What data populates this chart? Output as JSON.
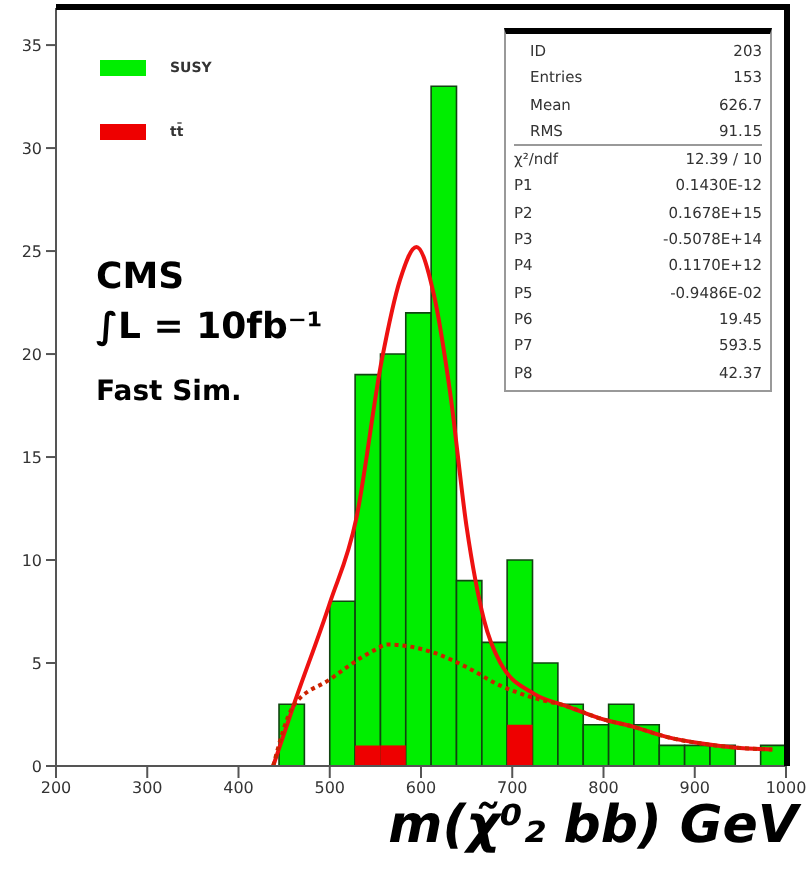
{
  "chart_data": {
    "type": "histogram",
    "xlabel": "m(χ̃⁰₂ bb) GeV",
    "bins": [
      444.4,
      472.2,
      500,
      527.8,
      555.6,
      583.3,
      611.1,
      638.9,
      666.7,
      694.4,
      722.2,
      750,
      777.8,
      805.6,
      833.3,
      861.1,
      888.9,
      916.7,
      944.4,
      972.2,
      1000
    ],
    "series": [
      {
        "name": "SUSY",
        "color": "#00ee00",
        "values": [
          3,
          0,
          8,
          19,
          20,
          22,
          33,
          9,
          6,
          10,
          5,
          3,
          2,
          3,
          2,
          1,
          1,
          1,
          0,
          1
        ]
      },
      {
        "name": "tt̄",
        "color": "#ee0000",
        "values": [
          0,
          0,
          0,
          1,
          1,
          0,
          0,
          0,
          0,
          2,
          0,
          0,
          0,
          0,
          0,
          0,
          0,
          0,
          0,
          0
        ]
      },
      {
        "type": "line",
        "color": "#ee1111",
        "line_style": "solid",
        "x": [
          438,
          460,
          500,
          529,
          557,
          577,
          595,
          614,
          632,
          650,
          669,
          687,
          724,
          760,
          797,
          833,
          870,
          906,
          943,
          985
        ],
        "values": [
          0,
          2.9,
          7.9,
          12,
          19.7,
          23.6,
          25.2,
          22.9,
          18.1,
          11.6,
          7.1,
          5,
          3.5,
          2.9,
          2.3,
          1.9,
          1.4,
          1.1,
          0.9,
          0.8
        ]
      },
      {
        "type": "line",
        "color": "#cc2200",
        "line_style": "dotted",
        "x": [
          438,
          460,
          500,
          548,
          563,
          614,
          650,
          687,
          724,
          760,
          797,
          833,
          870,
          906,
          943,
          985
        ],
        "values": [
          0,
          2.9,
          4.2,
          5.6,
          5.9,
          5.5,
          4.8,
          3.9,
          3.3,
          2.9,
          2.3,
          1.9,
          1.4,
          1.1,
          0.9,
          0.8
        ]
      }
    ],
    "xlim": [
      200,
      1000
    ],
    "xticks": [
      200,
      300,
      400,
      500,
      600,
      700,
      800,
      900,
      1000
    ],
    "ylim": [
      0,
      36.8
    ],
    "yticks": [
      0,
      5,
      10,
      15,
      20,
      25,
      30,
      35
    ],
    "legend": "top left",
    "grid": false,
    "annotations": [
      "CMS",
      "∫L = 10fb⁻¹",
      "Fast Sim.",
      "ID",
      "203",
      "Entries",
      "153",
      "Mean",
      "626.7",
      "RMS",
      "91.15",
      "χ²/ndf",
      "12.39  /  10",
      "P1",
      "0.1430E-12",
      "P2",
      "0.1678E+15",
      "P3",
      "-0.5078E+14",
      "P4",
      "0.1170E+12",
      "P5",
      "-0.9486E-02",
      "P6",
      "19.45",
      "P7",
      "593.5",
      "P8",
      "42.37"
    ]
  }
}
